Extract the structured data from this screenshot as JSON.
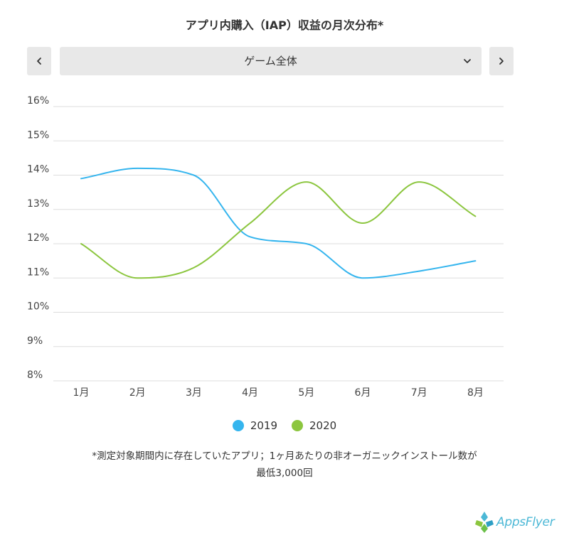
{
  "title": "アプリ内購入（IAP）収益の月次分布*",
  "selector": {
    "value": "ゲーム全体",
    "prev_icon": "chevron-left-icon",
    "next_icon": "chevron-right-icon"
  },
  "colors": {
    "series_2019": "#35b5ee",
    "series_2020": "#8cc63f",
    "grid": "#dddddd",
    "control_bg": "#e8e8e8"
  },
  "chart_data": {
    "type": "line",
    "x": [
      "1月",
      "2月",
      "3月",
      "4月",
      "5月",
      "6月",
      "7月",
      "8月"
    ],
    "ylim": [
      8,
      16
    ],
    "yticks": [
      "8%",
      "9%",
      "10%",
      "11%",
      "12%",
      "13%",
      "14%",
      "15%",
      "16%"
    ],
    "grid": true,
    "legend_position": "bottom-center",
    "series": [
      {
        "name": "2019",
        "color": "#35b5ee",
        "values": [
          13.9,
          14.2,
          14.0,
          12.2,
          12.0,
          11.0,
          11.2,
          11.5
        ]
      },
      {
        "name": "2020",
        "color": "#8cc63f",
        "values": [
          12.0,
          11.0,
          11.3,
          12.6,
          13.8,
          12.6,
          13.8,
          12.8
        ]
      }
    ]
  },
  "footnote": {
    "line1": "*測定対象期間内に存在していたアプリ；1ヶ月あたりの非オーガニックインストール数が",
    "line2": "最低3,000回"
  },
  "logo": {
    "text": "AppsFlyer"
  }
}
